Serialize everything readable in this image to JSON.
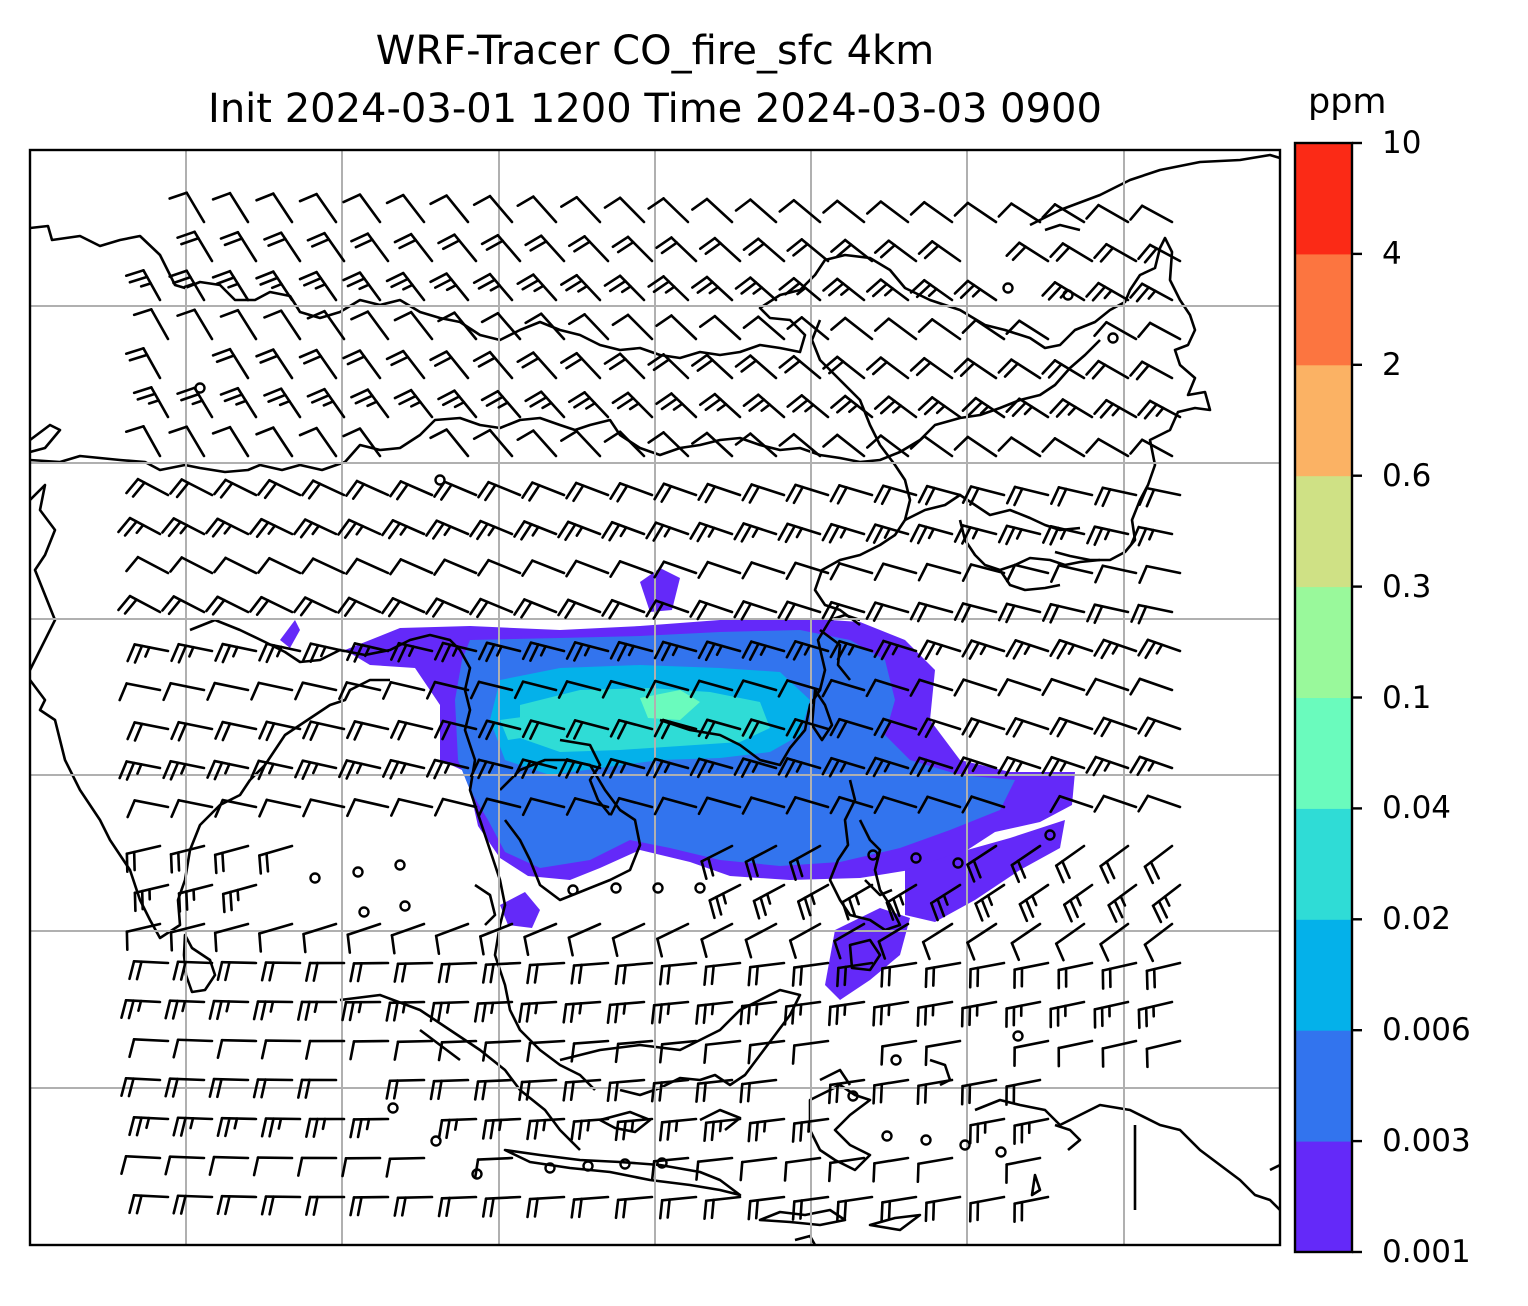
{
  "title": {
    "line1": "WRF-Tracer CO_fire_sfc 4km",
    "line2": "Init 2024-03-01 1200 Time 2024-03-03 0900"
  },
  "colorbar": {
    "unit": "ppm",
    "ticks": [
      "0.001",
      "0.003",
      "0.006",
      "0.02",
      "0.04",
      "0.1",
      "0.3",
      "0.6",
      "2",
      "4",
      "10"
    ],
    "colors": [
      "#6429f9",
      "#3274ee",
      "#04b1ea",
      "#2fdcd6",
      "#6afbbd",
      "#99f99b",
      "#cfe185",
      "#fbb264",
      "#fc7540",
      "#fb2a16"
    ]
  },
  "map": {
    "field": "CO_fire_sfc",
    "overlay": "wind-barbs",
    "coastlines": true,
    "gridlines": true
  }
}
